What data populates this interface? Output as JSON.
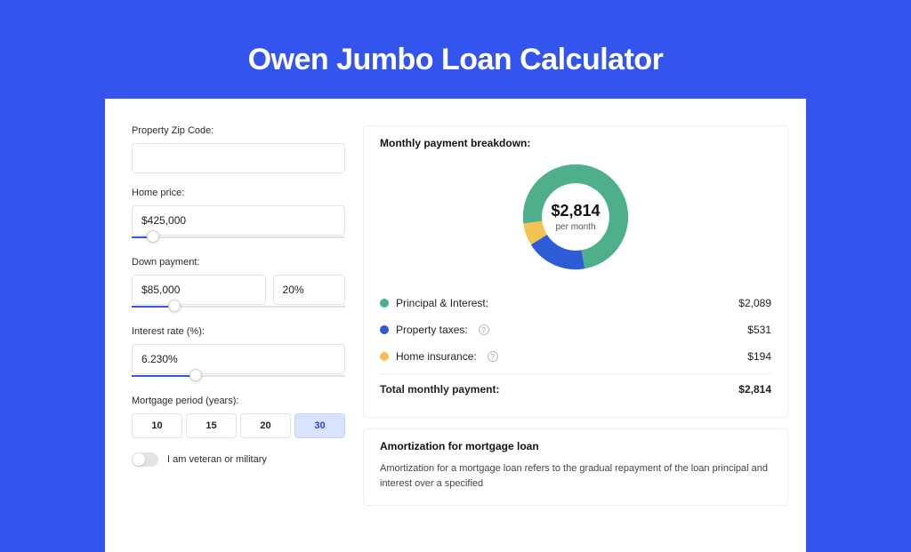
{
  "page": {
    "title": "Owen Jumbo Loan Calculator",
    "background_color": "#3355ee"
  },
  "form": {
    "zip": {
      "label": "Property Zip Code:",
      "value": ""
    },
    "price": {
      "label": "Home price:",
      "value": "$425,000",
      "slider_pct": 10
    },
    "down": {
      "label": "Down payment:",
      "value_amount": "$85,000",
      "value_pct": "20%",
      "slider_pct": 20
    },
    "rate": {
      "label": "Interest rate (%):",
      "value": "6.230%",
      "slider_pct": 30
    },
    "period": {
      "label": "Mortgage period (years):",
      "options": [
        "10",
        "15",
        "20",
        "30"
      ],
      "active": "30"
    },
    "veteran": {
      "label": "I am veteran or military",
      "on": false
    }
  },
  "breakdown": {
    "title": "Monthly payment breakdown:",
    "donut": {
      "center_amount": "$2,814",
      "center_sub": "per month",
      "slices": [
        {
          "key": "principal_interest",
          "value": 2089,
          "color": "#4db08a"
        },
        {
          "key": "property_taxes",
          "value": 531,
          "color": "#2e5cd6"
        },
        {
          "key": "home_insurance",
          "value": 194,
          "color": "#f3c253"
        }
      ],
      "background_color": "#ffffff",
      "ring_thickness": 20
    },
    "rows": [
      {
        "label": "Principal & Interest:",
        "value": "$2,089",
        "dot_color": "#4db08a",
        "help": false
      },
      {
        "label": "Property taxes:",
        "value": "$531",
        "dot_color": "#2e5cd6",
        "help": true
      },
      {
        "label": "Home insurance:",
        "value": "$194",
        "dot_color": "#f3c253",
        "help": true
      }
    ],
    "total": {
      "label": "Total monthly payment:",
      "value": "$2,814"
    }
  },
  "amortization": {
    "title": "Amortization for mortgage loan",
    "text": "Amortization for a mortgage loan refers to the gradual repayment of the loan principal and interest over a specified"
  }
}
